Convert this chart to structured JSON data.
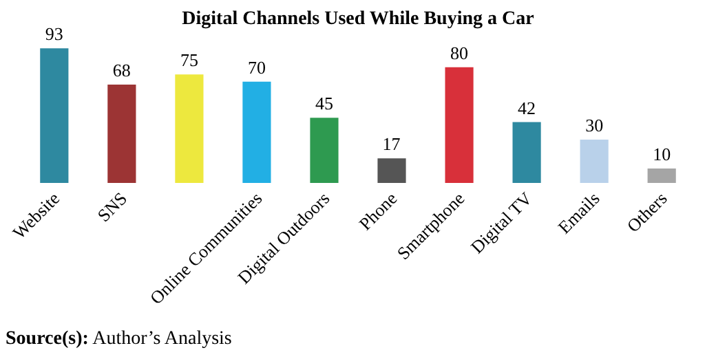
{
  "chart_data": {
    "type": "bar",
    "title": "Digital Channels Used While Buying a Car",
    "categories": [
      "Website",
      "SNS",
      null,
      "Online Communities",
      "Digital Outdoors",
      "Phone",
      "Smartphone",
      "Digital TV",
      "Emails",
      "Others"
    ],
    "values": [
      93,
      68,
      75,
      70,
      45,
      17,
      80,
      42,
      30,
      10
    ],
    "colors": [
      "#2e89a0",
      "#9c3434",
      "#ede83e",
      "#22afe4",
      "#2e9a50",
      "#555555",
      "#d8303a",
      "#2e89a0",
      "#b9d1ea",
      "#a5a5a5"
    ],
    "data_labels": true,
    "grid": false,
    "legend": false,
    "annotations": [
      "Source(s): Author’s Analysis"
    ]
  }
}
